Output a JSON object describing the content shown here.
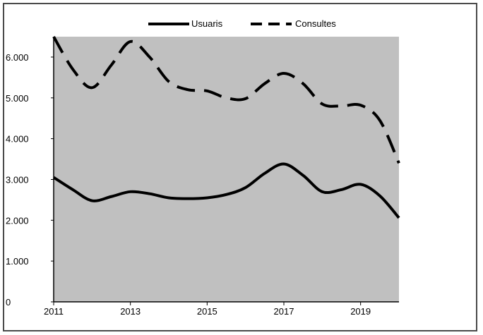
{
  "chart_data": {
    "type": "line",
    "x": [
      2011,
      2011.5,
      2012,
      2012.5,
      2013,
      2013.5,
      2014,
      2014.5,
      2015,
      2015.5,
      2016,
      2016.5,
      2017,
      2017.5,
      2018,
      2018.5,
      2019,
      2019.5,
      2020
    ],
    "series": [
      {
        "name": "Usuaris",
        "style": "solid",
        "values": [
          3050,
          2750,
          2480,
          2580,
          2700,
          2650,
          2550,
          2530,
          2550,
          2630,
          2800,
          3150,
          3380,
          3100,
          2700,
          2750,
          2880,
          2600,
          2060
        ]
      },
      {
        "name": "Consultes",
        "style": "dashed",
        "values": [
          6500,
          5700,
          5250,
          5800,
          6380,
          6000,
          5400,
          5200,
          5170,
          5000,
          4980,
          5350,
          5600,
          5350,
          4850,
          4800,
          4820,
          4450,
          3400
        ]
      }
    ],
    "xticks": [
      "2011",
      "2013",
      "2015",
      "2017",
      "2019"
    ],
    "xtick_values": [
      2011,
      2013,
      2015,
      2017,
      2019
    ],
    "yticks": [
      "0",
      "1.000",
      "2.000",
      "3.000",
      "4.000",
      "5.000",
      "6.000"
    ],
    "ytick_values": [
      0,
      1000,
      2000,
      3000,
      4000,
      5000,
      6000
    ],
    "xlim": [
      2011,
      2020
    ],
    "ylim": [
      0,
      6500
    ],
    "legend_position": "top-center",
    "grid": false,
    "colors": {
      "plot_background": "#c0c0c0",
      "line": "#000000",
      "frame": "#4a4a4a"
    }
  }
}
